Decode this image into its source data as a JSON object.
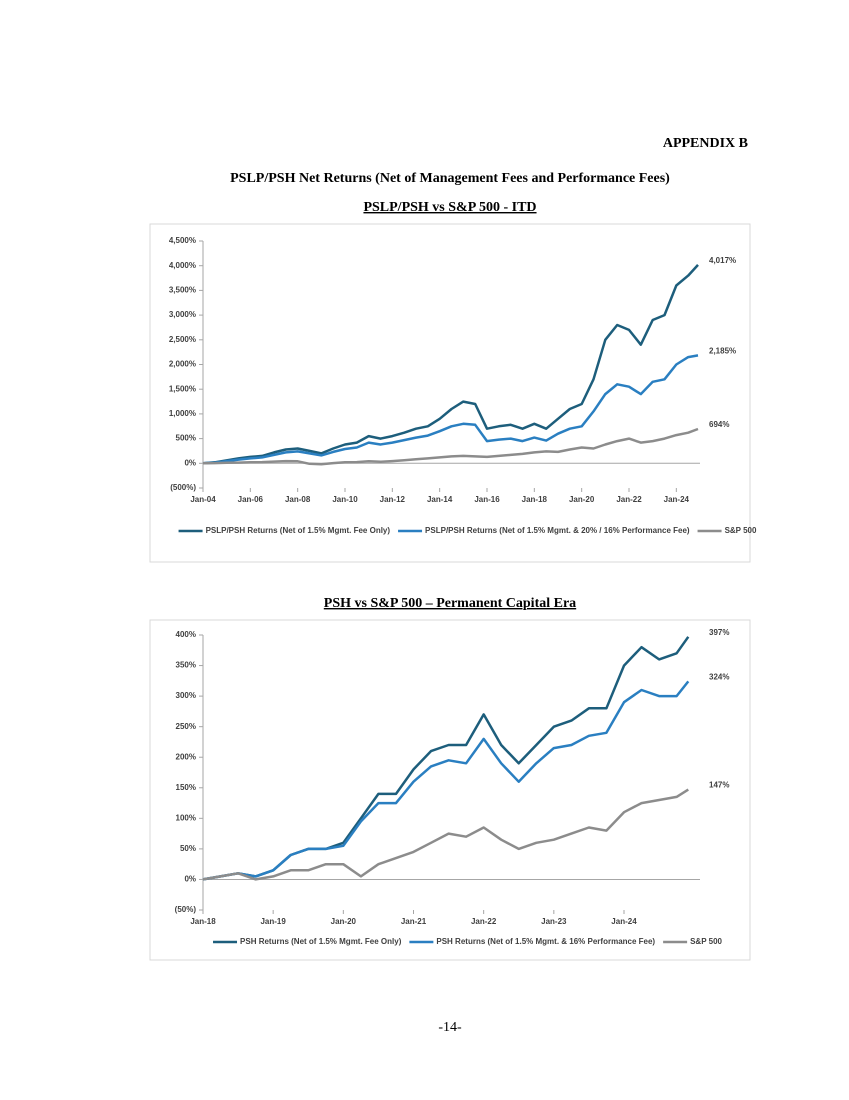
{
  "header": {
    "appendix": "APPENDIX B",
    "title": "PSLP/PSH Net Returns (Net of Management Fees and Performance Fees)"
  },
  "page_number": "-14-",
  "chart_data": [
    {
      "type": "line",
      "title": "PSLP/PSH vs S&P 500 - ITD",
      "x": [
        "2004-01",
        "2004-07",
        "2005-01",
        "2005-07",
        "2006-01",
        "2006-07",
        "2007-01",
        "2007-07",
        "2008-01",
        "2008-07",
        "2009-01",
        "2009-07",
        "2010-01",
        "2010-07",
        "2011-01",
        "2011-07",
        "2012-01",
        "2012-07",
        "2013-01",
        "2013-07",
        "2014-01",
        "2014-07",
        "2015-01",
        "2015-07",
        "2016-01",
        "2016-07",
        "2017-01",
        "2017-07",
        "2018-01",
        "2018-07",
        "2019-01",
        "2019-07",
        "2020-01",
        "2020-07",
        "2021-01",
        "2021-07",
        "2022-01",
        "2022-07",
        "2023-01",
        "2023-07",
        "2024-01",
        "2024-07",
        "2024-12"
      ],
      "series": [
        {
          "name": "PSLP/PSH Returns (Net of 1.5% Mgmt. Fee Only)",
          "color": "#1d5e7c",
          "end_label": "4,017%",
          "values": [
            0,
            20,
            60,
            100,
            130,
            150,
            220,
            280,
            300,
            250,
            200,
            300,
            380,
            420,
            550,
            500,
            550,
            620,
            700,
            750,
            900,
            1100,
            1250,
            1200,
            700,
            750,
            780,
            700,
            800,
            700,
            900,
            1100,
            1200,
            1700,
            2500,
            2800,
            2700,
            2400,
            2900,
            3000,
            3600,
            3800,
            4017
          ]
        },
        {
          "name": "PSLP/PSH Returns (Net of 1.5% Mgmt. & 20% / 16% Performance Fee)",
          "color": "#2a7fc1",
          "end_label": "2,185%",
          "values": [
            0,
            15,
            45,
            75,
            100,
            120,
            170,
            220,
            240,
            200,
            160,
            230,
            290,
            320,
            420,
            380,
            420,
            470,
            520,
            560,
            650,
            750,
            800,
            780,
            450,
            480,
            500,
            450,
            520,
            460,
            600,
            700,
            750,
            1050,
            1400,
            1600,
            1550,
            1400,
            1650,
            1700,
            2000,
            2150,
            2185
          ]
        },
        {
          "name": "S&P 500",
          "color": "#8c8c8c",
          "end_label": "694%",
          "values": [
            0,
            5,
            10,
            15,
            20,
            25,
            35,
            45,
            40,
            -10,
            -20,
            5,
            20,
            25,
            40,
            30,
            45,
            60,
            80,
            100,
            120,
            140,
            150,
            140,
            130,
            150,
            170,
            190,
            220,
            240,
            230,
            280,
            320,
            300,
            380,
            450,
            500,
            420,
            450,
            500,
            570,
            620,
            694
          ]
        }
      ],
      "xlim": [
        "2004-01",
        "2025-01"
      ],
      "xticks": [
        {
          "value": "2004-01",
          "label": "Jan-04"
        },
        {
          "value": "2006-01",
          "label": "Jan-06"
        },
        {
          "value": "2008-01",
          "label": "Jan-08"
        },
        {
          "value": "2010-01",
          "label": "Jan-10"
        },
        {
          "value": "2012-01",
          "label": "Jan-12"
        },
        {
          "value": "2014-01",
          "label": "Jan-14"
        },
        {
          "value": "2016-01",
          "label": "Jan-16"
        },
        {
          "value": "2018-01",
          "label": "Jan-18"
        },
        {
          "value": "2020-01",
          "label": "Jan-20"
        },
        {
          "value": "2022-01",
          "label": "Jan-22"
        },
        {
          "value": "2024-01",
          "label": "Jan-24"
        }
      ],
      "ylim": [
        -500,
        4500
      ],
      "yticks": [
        {
          "value": -500,
          "label": "(500%)"
        },
        {
          "value": 0,
          "label": "0%"
        },
        {
          "value": 500,
          "label": "500%"
        },
        {
          "value": 1000,
          "label": "1,000%"
        },
        {
          "value": 1500,
          "label": "1,500%"
        },
        {
          "value": 2000,
          "label": "2,000%"
        },
        {
          "value": 2500,
          "label": "2,500%"
        },
        {
          "value": 3000,
          "label": "3,000%"
        },
        {
          "value": 3500,
          "label": "3,500%"
        },
        {
          "value": 4000,
          "label": "4,000%"
        },
        {
          "value": 4500,
          "label": "4,500%"
        }
      ],
      "legend": "bottom"
    },
    {
      "type": "line",
      "title": "PSH vs S&P 500 – Permanent Capital Era",
      "x": [
        "2018-01",
        "2018-04",
        "2018-07",
        "2018-10",
        "2019-01",
        "2019-04",
        "2019-07",
        "2019-10",
        "2020-01",
        "2020-04",
        "2020-07",
        "2020-10",
        "2021-01",
        "2021-04",
        "2021-07",
        "2021-10",
        "2022-01",
        "2022-04",
        "2022-07",
        "2022-10",
        "2023-01",
        "2023-04",
        "2023-07",
        "2023-10",
        "2024-01",
        "2024-04",
        "2024-07",
        "2024-10",
        "2024-12"
      ],
      "series": [
        {
          "name": "PSH Returns (Net of 1.5% Mgmt. Fee Only)",
          "color": "#1d5e7c",
          "end_label": "397%",
          "values": [
            0,
            5,
            10,
            5,
            15,
            40,
            50,
            50,
            60,
            100,
            140,
            140,
            180,
            210,
            220,
            220,
            270,
            220,
            190,
            220,
            250,
            260,
            280,
            280,
            350,
            380,
            360,
            370,
            397
          ]
        },
        {
          "name": "PSH Returns (Net of 1.5% Mgmt. & 16% Performance Fee)",
          "color": "#2a7fc1",
          "end_label": "324%",
          "values": [
            0,
            5,
            10,
            5,
            15,
            40,
            50,
            50,
            55,
            95,
            125,
            125,
            160,
            185,
            195,
            190,
            230,
            190,
            160,
            190,
            215,
            220,
            235,
            240,
            290,
            310,
            300,
            300,
            324
          ]
        },
        {
          "name": "S&P 500",
          "color": "#8c8c8c",
          "end_label": "147%",
          "values": [
            0,
            5,
            10,
            0,
            5,
            15,
            15,
            25,
            25,
            5,
            25,
            35,
            45,
            60,
            75,
            70,
            85,
            65,
            50,
            60,
            65,
            75,
            85,
            80,
            110,
            125,
            130,
            135,
            147
          ]
        }
      ],
      "xlim": [
        "2018-01",
        "2025-02"
      ],
      "xticks": [
        {
          "value": "2018-01",
          "label": "Jan-18"
        },
        {
          "value": "2019-01",
          "label": "Jan-19"
        },
        {
          "value": "2020-01",
          "label": "Jan-20"
        },
        {
          "value": "2021-01",
          "label": "Jan-21"
        },
        {
          "value": "2022-01",
          "label": "Jan-22"
        },
        {
          "value": "2023-01",
          "label": "Jan-23"
        },
        {
          "value": "2024-01",
          "label": "Jan-24"
        }
      ],
      "ylim": [
        -50,
        400
      ],
      "yticks": [
        {
          "value": -50,
          "label": "(50%)"
        },
        {
          "value": 0,
          "label": "0%"
        },
        {
          "value": 50,
          "label": "50%"
        },
        {
          "value": 100,
          "label": "100%"
        },
        {
          "value": 150,
          "label": "150%"
        },
        {
          "value": 200,
          "label": "200%"
        },
        {
          "value": 250,
          "label": "250%"
        },
        {
          "value": 300,
          "label": "300%"
        },
        {
          "value": 350,
          "label": "350%"
        },
        {
          "value": 400,
          "label": "400%"
        }
      ],
      "legend": "bottom"
    }
  ]
}
